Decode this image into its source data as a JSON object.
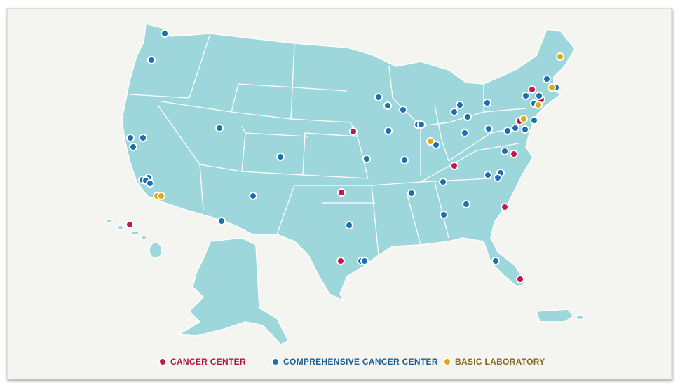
{
  "legend": {
    "items": [
      {
        "label": "CANCER CENTER",
        "color": "#c4184a"
      },
      {
        "label": "COMPREHENSIVE CANCER CENTER",
        "color": "#1b6fb3"
      },
      {
        "label": "BASIC LABORATORY",
        "color": "#e0a812"
      }
    ]
  }
}
